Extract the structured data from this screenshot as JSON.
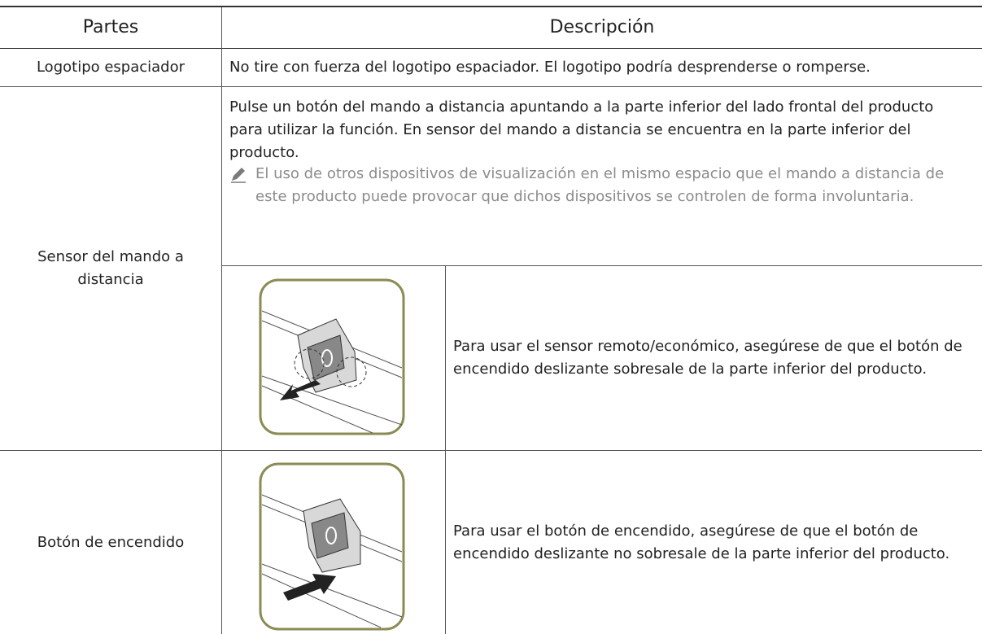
{
  "table": {
    "headers": [
      "Partes",
      "Descripción"
    ],
    "rows": [
      {
        "part": "Logotipo espaciador",
        "description": "No tire con fuerza del logotipo espaciador. El logotipo podría desprenderse o romperse."
      },
      {
        "part": "Sensor del mando a distancia",
        "description": "Pulse un botón del mando a distancia apuntando a la parte inferior del lado frontal del producto para utilizar la función. En sensor del mando a distancia se encuentra en la parte inferior del producto.",
        "note": "El uso de otros dispositivos de visualización en el mismo espacio que el mando a distancia de este producto puede provocar que dichos dispositivos se controlen de forma involuntaria.",
        "detail": "Para usar el sensor remoto/económico, asegúrese de que el botón de encendido deslizante sobresale de la parte inferior del producto."
      },
      {
        "part": "Botón de encendido",
        "detail": "Para usar el botón de encendido, asegúrese de que el botón de encendido deslizante no sobresale de la parte inferior del producto."
      }
    ]
  }
}
